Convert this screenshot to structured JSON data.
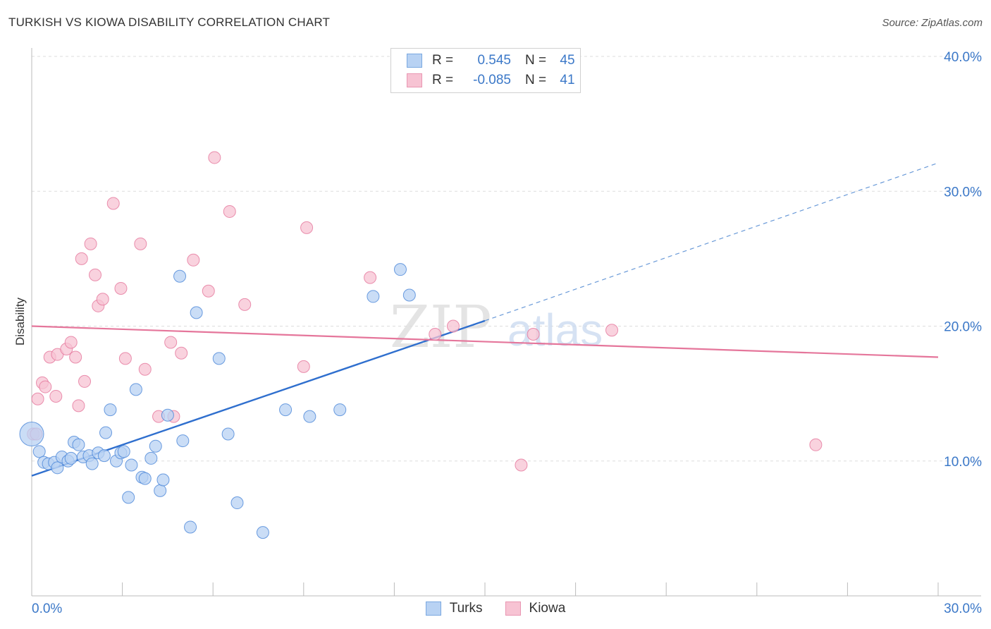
{
  "header": {
    "title": "TURKISH VS KIOWA DISABILITY CORRELATION CHART",
    "source": "Source: ZipAtlas.com"
  },
  "watermark": {
    "zip": "ZIP",
    "atlas": "atlas"
  },
  "stats": {
    "r_label": "R =",
    "n_label": "N =",
    "turks": {
      "r": "0.545",
      "n": "45"
    },
    "kiowa": {
      "r": "-0.085",
      "n": "41"
    }
  },
  "colors": {
    "turks": "#4a86d8",
    "turks_fill": "#b8d2f3",
    "kiowa": "#e5769b",
    "kiowa_fill": "#f7c3d3",
    "axis_label": "#3b78c8"
  },
  "chart_data": {
    "type": "scatter",
    "title": "TURKISH VS KIOWA DISABILITY CORRELATION CHART",
    "ylabel": "Disability",
    "xlim": [
      0,
      30
    ],
    "ylim": [
      0,
      40
    ],
    "x_tick_labels": [
      "0.0%",
      "30.0%"
    ],
    "y_ticks": [
      10,
      20,
      30,
      40
    ],
    "y_tick_labels": [
      "10.0%",
      "20.0%",
      "30.0%",
      "40.0%"
    ],
    "grid": true,
    "legend_position": "top-center",
    "series": [
      {
        "name": "Turks",
        "points": [
          [
            0.0,
            12.0
          ],
          [
            0.25,
            10.7
          ],
          [
            0.4,
            9.9
          ],
          [
            0.55,
            9.8
          ],
          [
            0.75,
            9.9
          ],
          [
            0.85,
            9.5
          ],
          [
            1.0,
            10.3
          ],
          [
            1.2,
            10.0
          ],
          [
            1.3,
            10.2
          ],
          [
            1.4,
            11.4
          ],
          [
            1.55,
            11.2
          ],
          [
            1.7,
            10.3
          ],
          [
            1.9,
            10.4
          ],
          [
            2.0,
            9.8
          ],
          [
            2.2,
            10.6
          ],
          [
            2.4,
            10.4
          ],
          [
            2.45,
            12.1
          ],
          [
            2.6,
            13.8
          ],
          [
            2.8,
            10.0
          ],
          [
            2.95,
            10.6
          ],
          [
            3.05,
            10.7
          ],
          [
            3.2,
            7.3
          ],
          [
            3.3,
            9.7
          ],
          [
            3.45,
            15.3
          ],
          [
            3.65,
            8.8
          ],
          [
            3.75,
            8.7
          ],
          [
            3.95,
            10.2
          ],
          [
            4.1,
            11.1
          ],
          [
            4.25,
            7.8
          ],
          [
            4.35,
            8.6
          ],
          [
            4.5,
            13.4
          ],
          [
            4.9,
            23.7
          ],
          [
            5.0,
            11.5
          ],
          [
            5.25,
            5.1
          ],
          [
            5.45,
            21.0
          ],
          [
            6.2,
            17.6
          ],
          [
            6.5,
            12.0
          ],
          [
            6.8,
            6.9
          ],
          [
            7.65,
            4.7
          ],
          [
            8.4,
            13.8
          ],
          [
            9.2,
            13.3
          ],
          [
            10.2,
            13.8
          ],
          [
            11.3,
            22.2
          ],
          [
            12.2,
            24.2
          ],
          [
            12.5,
            22.3
          ]
        ],
        "trend": {
          "x": [
            0,
            15
          ],
          "y": [
            8.9,
            20.4
          ],
          "dashed_x": [
            15,
            30
          ],
          "dashed_y": [
            20.4,
            32.1
          ]
        }
      },
      {
        "name": "Kiowa",
        "points": [
          [
            0.05,
            12.0
          ],
          [
            0.2,
            14.6
          ],
          [
            0.35,
            15.8
          ],
          [
            0.45,
            15.5
          ],
          [
            0.6,
            17.7
          ],
          [
            0.8,
            14.8
          ],
          [
            0.85,
            17.9
          ],
          [
            1.15,
            18.3
          ],
          [
            1.3,
            18.8
          ],
          [
            1.45,
            17.7
          ],
          [
            1.55,
            14.1
          ],
          [
            1.65,
            25.0
          ],
          [
            1.75,
            15.9
          ],
          [
            1.95,
            26.1
          ],
          [
            2.1,
            23.8
          ],
          [
            2.2,
            21.5
          ],
          [
            2.35,
            22.0
          ],
          [
            2.7,
            29.1
          ],
          [
            2.95,
            22.8
          ],
          [
            3.1,
            17.6
          ],
          [
            3.6,
            26.1
          ],
          [
            3.75,
            16.8
          ],
          [
            4.2,
            13.3
          ],
          [
            4.6,
            18.8
          ],
          [
            4.7,
            13.3
          ],
          [
            4.95,
            18.0
          ],
          [
            5.35,
            24.9
          ],
          [
            5.85,
            22.6
          ],
          [
            6.05,
            32.5
          ],
          [
            6.55,
            28.5
          ],
          [
            7.05,
            21.6
          ],
          [
            9.0,
            17.0
          ],
          [
            9.1,
            27.3
          ],
          [
            11.2,
            23.6
          ],
          [
            13.35,
            19.4
          ],
          [
            13.95,
            20.0
          ],
          [
            16.2,
            9.7
          ],
          [
            16.6,
            19.4
          ],
          [
            19.2,
            19.7
          ],
          [
            25.95,
            11.2
          ],
          [
            0.15,
            12.0
          ]
        ],
        "trend": {
          "x": [
            0,
            30
          ],
          "y": [
            20.0,
            17.7
          ]
        }
      }
    ]
  }
}
